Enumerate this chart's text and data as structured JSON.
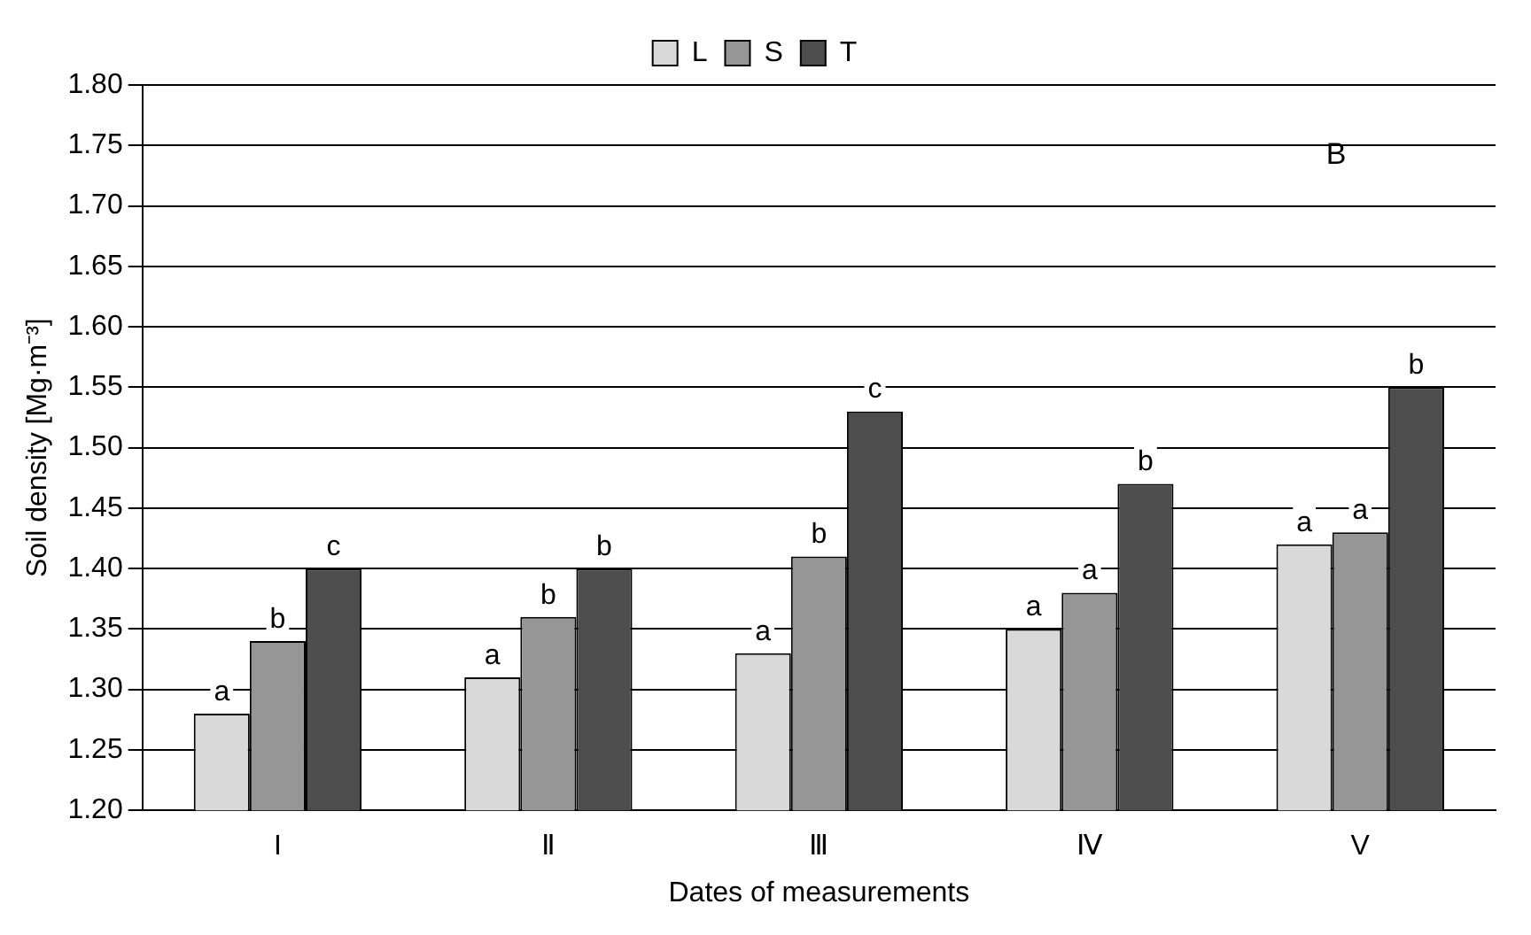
{
  "chart_data": {
    "type": "bar",
    "xlabel": "Dates of measurements",
    "ylabel": "Soil density [Mg·m⁻³]",
    "categories": [
      "I",
      "Ⅱ",
      "Ⅲ",
      "Ⅳ",
      "V"
    ],
    "series": [
      {
        "name": "L",
        "color": "#d9d9d9",
        "values": [
          1.28,
          1.31,
          1.33,
          1.35,
          1.42
        ],
        "value_labels": [
          "a",
          "a",
          "a",
          "a",
          "a"
        ]
      },
      {
        "name": "S",
        "color": "#969696",
        "values": [
          1.34,
          1.36,
          1.41,
          1.38,
          1.43
        ],
        "value_labels": [
          "b",
          "b",
          "b",
          "a",
          "a"
        ]
      },
      {
        "name": "T",
        "color": "#4d4d4d",
        "values": [
          1.4,
          1.4,
          1.53,
          1.47,
          1.55
        ],
        "value_labels": [
          "c",
          "b",
          "c",
          "b",
          "b"
        ]
      }
    ],
    "ylim": [
      1.2,
      1.8
    ],
    "yticks": [
      {
        "value": 1.2,
        "label": "1.20"
      },
      1.25,
      {
        "value": 1.3,
        "label": "1.30"
      },
      1.35,
      {
        "value": 1.4,
        "label": "1.40"
      },
      1.45,
      {
        "value": 1.5,
        "label": "1.50"
      },
      1.55,
      {
        "value": 1.6,
        "label": "1.60"
      },
      1.65,
      {
        "value": 1.7,
        "label": "1.70"
      },
      1.75,
      {
        "value": 1.8,
        "label": "1.80"
      }
    ],
    "grid": "y",
    "legend": "top",
    "annotations": [
      "B"
    ]
  }
}
